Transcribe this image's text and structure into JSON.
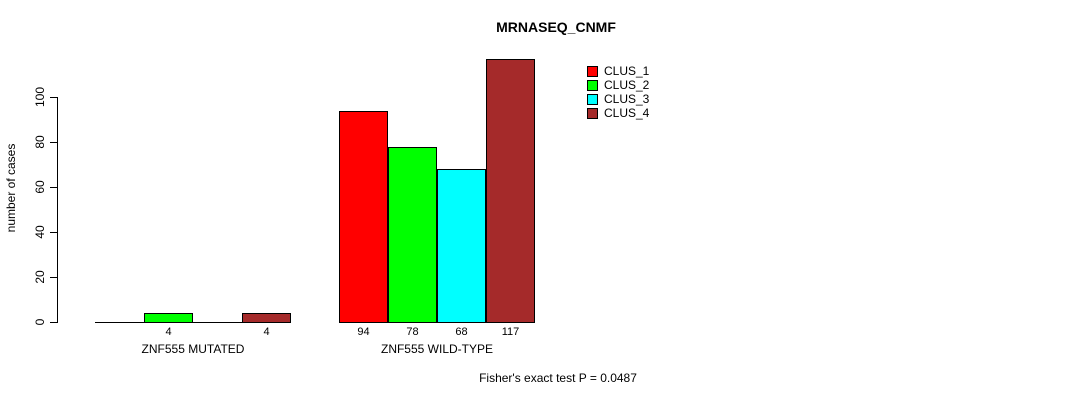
{
  "chart_data": {
    "type": "bar",
    "title": "MRNASEQ_CNMF",
    "ylabel": "number of cases",
    "xlabel": "",
    "ylim": [
      0,
      100
    ],
    "yticks": [
      0,
      20,
      40,
      60,
      80,
      100
    ],
    "grid": false,
    "categories": [
      "ZNF555 MUTATED",
      "ZNF555 WILD-TYPE"
    ],
    "series": [
      {
        "name": "CLUS_1",
        "color": "#FF0000",
        "values": [
          0,
          94
        ]
      },
      {
        "name": "CLUS_2",
        "color": "#00FF00",
        "values": [
          4,
          78
        ]
      },
      {
        "name": "CLUS_3",
        "color": "#00FFFF",
        "values": [
          0,
          68
        ]
      },
      {
        "name": "CLUS_4",
        "color": "#A52A2A",
        "values": [
          4,
          117
        ]
      }
    ],
    "visible_bar_value_labels": [
      "4",
      "4",
      "94",
      "78",
      "68",
      "117"
    ],
    "zero_value_bars_unlabeled": true,
    "legend": {
      "position": "right-of-plot-top",
      "entries": [
        "CLUS_1",
        "CLUS_2",
        "CLUS_3",
        "CLUS_4"
      ]
    },
    "annotation": "Fisher's exact test P = 0.0487"
  },
  "colors": {
    "background": "#FFFFFF",
    "axis": "#000000",
    "text": "#000000",
    "clus_1": "#FF0000",
    "clus_2": "#00FF00",
    "clus_3": "#00FFFF",
    "clus_4": "#A52A2A"
  }
}
